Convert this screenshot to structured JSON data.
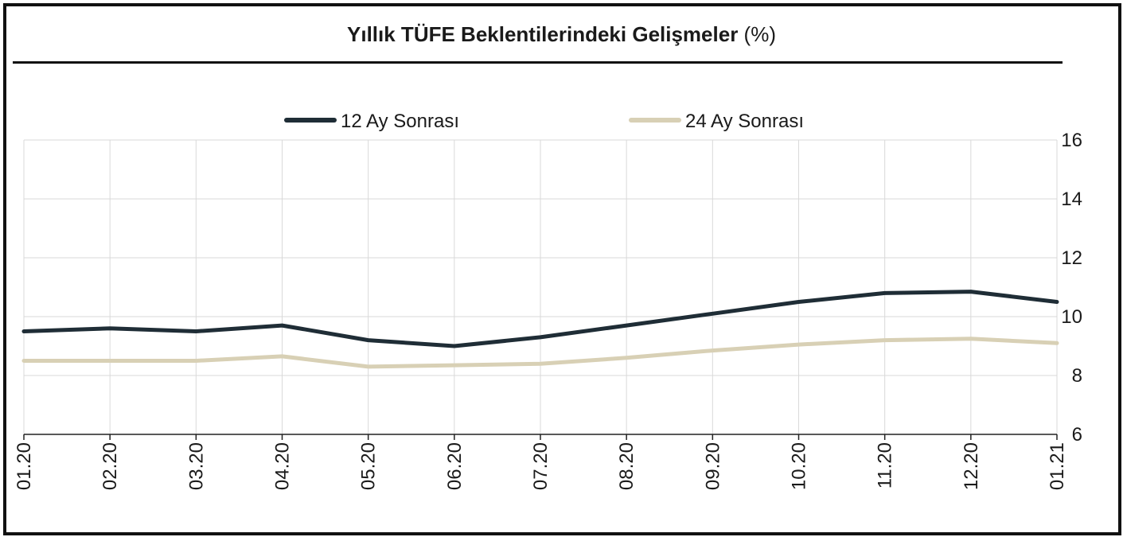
{
  "title": {
    "main": "Yıllık TÜFE Beklentilerindeki Gelişmeler",
    "unit": "(%)"
  },
  "colors": {
    "series_12": "#1f2d36",
    "series_24": "#d8d0b5",
    "grid": "#d9d9d9",
    "axis": "#222222"
  },
  "chart_data": {
    "type": "line",
    "title": "Yıllık TÜFE Beklentilerindeki Gelişmeler (%)",
    "x": [
      "01.20",
      "02.20",
      "03.20",
      "04.20",
      "05.20",
      "06.20",
      "07.20",
      "08.20",
      "09.20",
      "10.20",
      "11.20",
      "12.20",
      "01.21"
    ],
    "series": [
      {
        "name": "12 Ay Sonrası",
        "values": [
          9.5,
          9.6,
          9.5,
          9.7,
          9.2,
          9.0,
          9.3,
          9.7,
          10.1,
          10.5,
          10.8,
          10.85,
          10.5
        ]
      },
      {
        "name": "24 Ay Sonrası",
        "values": [
          8.5,
          8.5,
          8.5,
          8.65,
          8.3,
          8.35,
          8.4,
          8.6,
          8.85,
          9.05,
          9.2,
          9.25,
          9.1
        ]
      }
    ],
    "ylim": [
      6,
      16
    ],
    "yticks": [
      6,
      8,
      10,
      12,
      14,
      16
    ],
    "y_axis_side": "right",
    "x_label_rotation": "vertical",
    "grid": true,
    "legend_placement": "top-center"
  }
}
